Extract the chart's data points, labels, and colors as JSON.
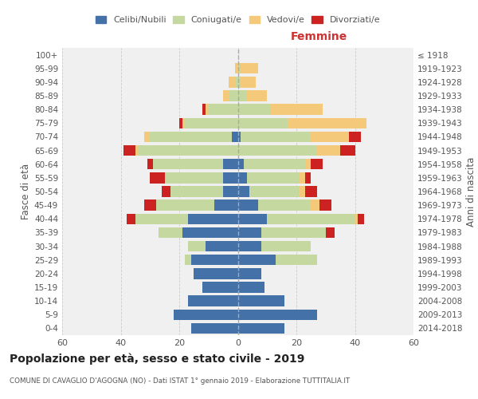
{
  "age_groups": [
    "0-4",
    "5-9",
    "10-14",
    "15-19",
    "20-24",
    "25-29",
    "30-34",
    "35-39",
    "40-44",
    "45-49",
    "50-54",
    "55-59",
    "60-64",
    "65-69",
    "70-74",
    "75-79",
    "80-84",
    "85-89",
    "90-94",
    "95-99",
    "100+"
  ],
  "birth_years": [
    "2014-2018",
    "2009-2013",
    "2004-2008",
    "1999-2003",
    "1994-1998",
    "1989-1993",
    "1984-1988",
    "1979-1983",
    "1974-1978",
    "1969-1973",
    "1964-1968",
    "1959-1963",
    "1954-1958",
    "1949-1953",
    "1944-1948",
    "1939-1943",
    "1934-1938",
    "1929-1933",
    "1924-1928",
    "1919-1923",
    "≤ 1918"
  ],
  "males": {
    "celibi": [
      16,
      22,
      17,
      12,
      15,
      16,
      11,
      19,
      17,
      8,
      5,
      5,
      5,
      0,
      2,
      0,
      0,
      0,
      0,
      0,
      0
    ],
    "coniugati": [
      0,
      0,
      0,
      0,
      0,
      2,
      6,
      8,
      18,
      20,
      18,
      20,
      24,
      34,
      28,
      18,
      10,
      3,
      1,
      0,
      0
    ],
    "vedovi": [
      0,
      0,
      0,
      0,
      0,
      0,
      0,
      0,
      0,
      0,
      0,
      0,
      0,
      1,
      2,
      1,
      1,
      2,
      2,
      1,
      0
    ],
    "divorziati": [
      0,
      0,
      0,
      0,
      0,
      0,
      0,
      0,
      3,
      4,
      3,
      5,
      2,
      4,
      0,
      1,
      1,
      0,
      0,
      0,
      0
    ]
  },
  "females": {
    "nubili": [
      16,
      27,
      16,
      9,
      8,
      13,
      8,
      8,
      10,
      7,
      4,
      3,
      2,
      0,
      1,
      0,
      0,
      0,
      0,
      0,
      0
    ],
    "coniugate": [
      0,
      0,
      0,
      0,
      0,
      14,
      17,
      22,
      30,
      18,
      17,
      18,
      21,
      27,
      24,
      17,
      11,
      3,
      1,
      1,
      0
    ],
    "vedove": [
      0,
      0,
      0,
      0,
      0,
      0,
      0,
      0,
      1,
      3,
      2,
      2,
      2,
      8,
      13,
      27,
      18,
      7,
      5,
      6,
      0
    ],
    "divorziate": [
      0,
      0,
      0,
      0,
      0,
      0,
      0,
      3,
      2,
      4,
      4,
      2,
      4,
      5,
      4,
      0,
      0,
      0,
      0,
      0,
      0
    ]
  },
  "colors": {
    "celibi": "#4472a8",
    "coniugati": "#c5d8a0",
    "vedovi": "#f5c97a",
    "divorziati": "#cc2222"
  },
  "xlim": 60,
  "title": "Popolazione per età, sesso e stato civile - 2019",
  "subtitle": "COMUNE DI CAVAGLIO D'AGOGNA (NO) - Dati ISTAT 1° gennaio 2019 - Elaborazione TUTTITALIA.IT",
  "ylabel_left": "Fasce di età",
  "ylabel_right": "Anni di nascita",
  "xlabel_right": "Femmine"
}
